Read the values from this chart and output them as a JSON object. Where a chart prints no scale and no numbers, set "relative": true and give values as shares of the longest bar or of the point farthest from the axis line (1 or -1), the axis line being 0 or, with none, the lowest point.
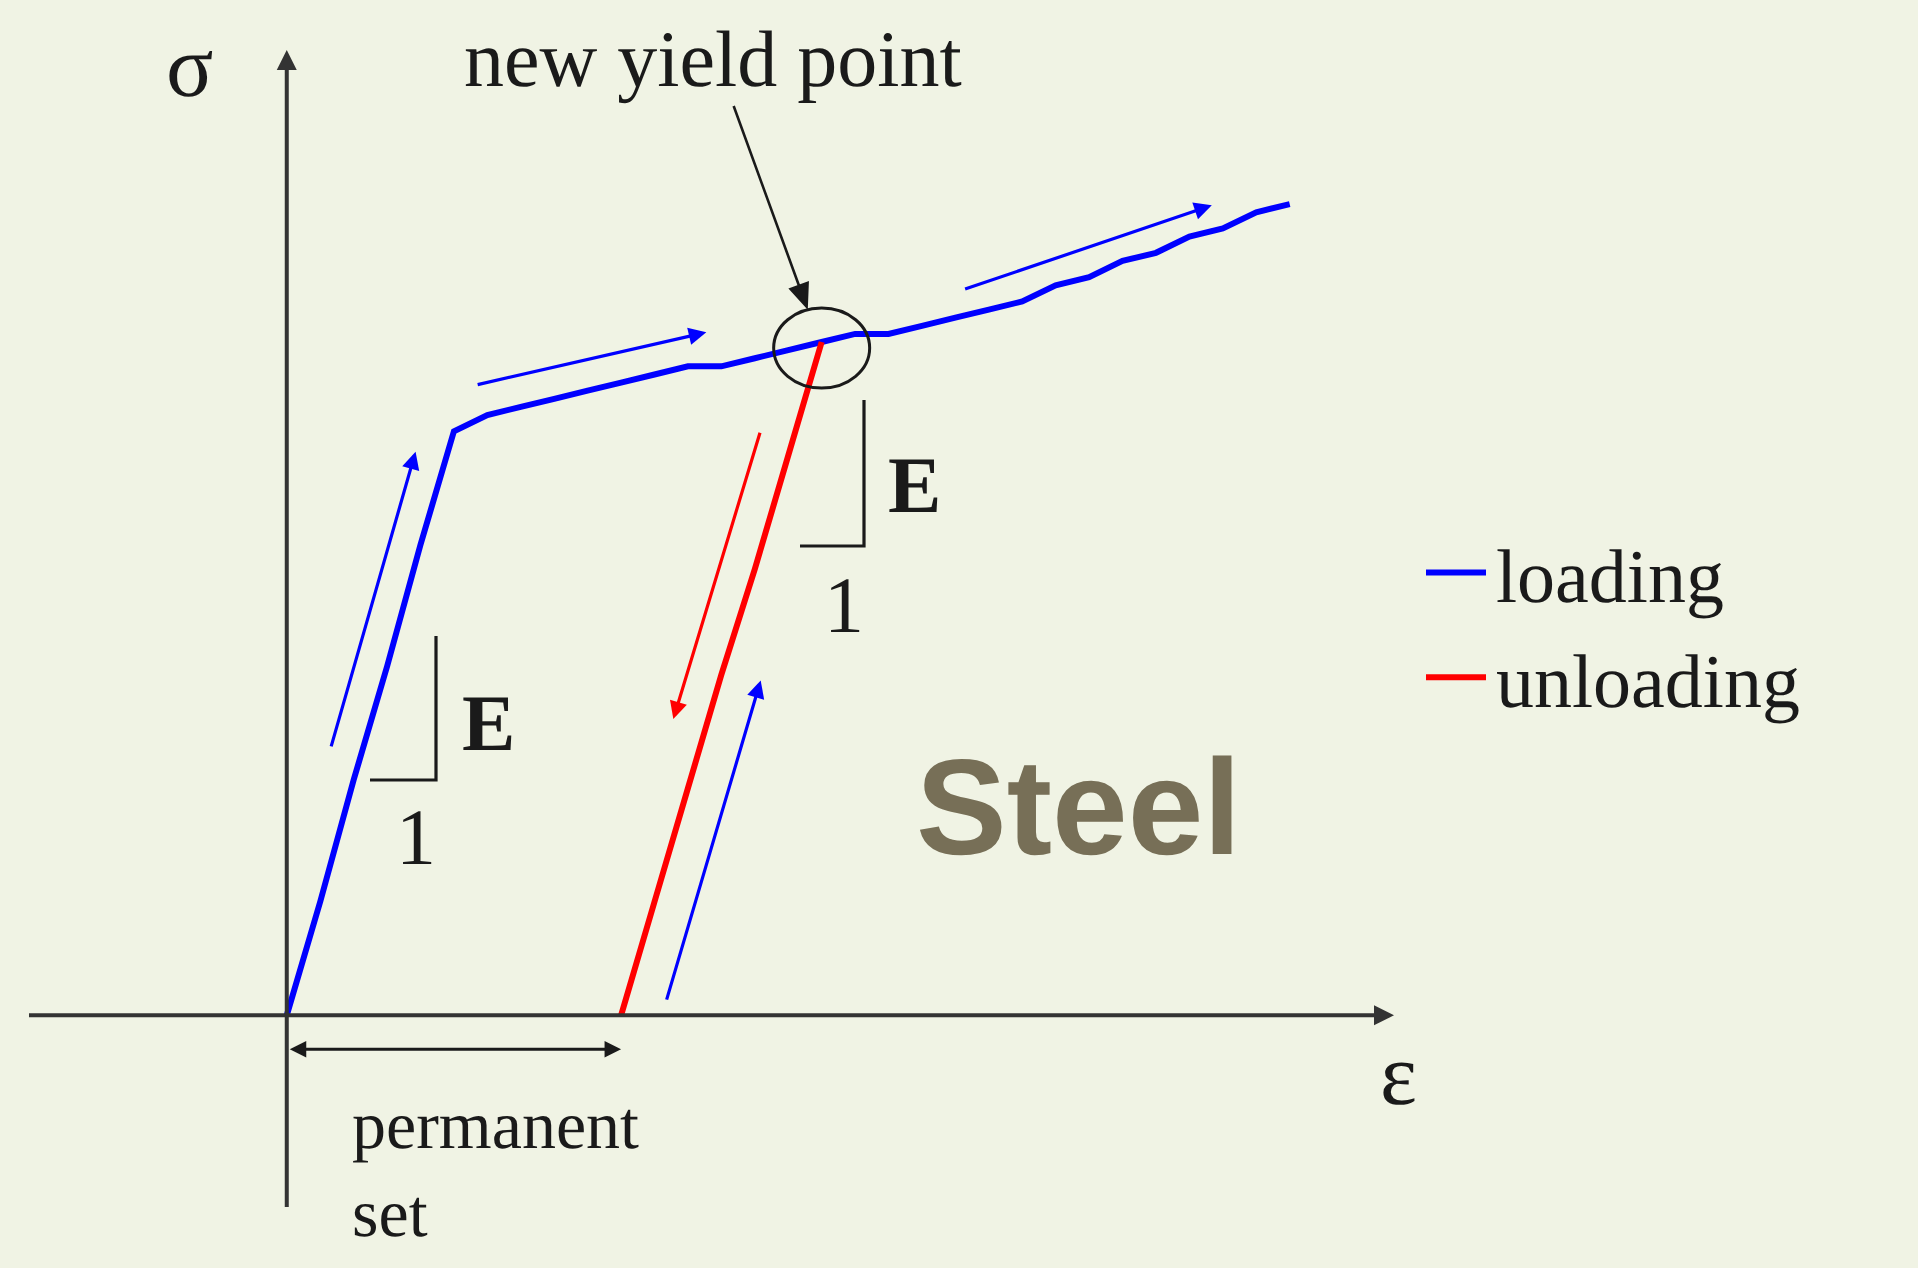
{
  "chart_data": {
    "type": "line",
    "relative": true,
    "xlabel": "ε",
    "ylabel": "σ",
    "line_style": "solid",
    "legend": "right",
    "categories": [
      null,
      null,
      null,
      null,
      null,
      null,
      null,
      null,
      null,
      null,
      null,
      null,
      null,
      null,
      null,
      null,
      null,
      null,
      null,
      null,
      null,
      null,
      null,
      null,
      null,
      null,
      null,
      null,
      null,
      null,
      null
    ],
    "series": [
      {
        "name": "loading",
        "color": "#0000ff",
        "values": [
          0,
          0.14,
          0.29,
          0.43,
          0.58,
          0.72,
          0.74,
          0.75,
          0.76,
          0.77,
          0.78,
          0.79,
          0.8,
          0.8,
          0.81,
          0.82,
          0.83,
          0.84,
          0.84,
          0.85,
          0.86,
          0.87,
          0.88,
          0.9,
          0.91,
          0.93,
          0.94,
          0.96,
          0.97,
          0.99,
          1
        ]
      },
      {
        "name": "unloading",
        "color": "#ff0000",
        "values": [
          null,
          null,
          null,
          null,
          null,
          null,
          null,
          null,
          null,
          null,
          0,
          0.14,
          0.28,
          0.42,
          0.55,
          0.69,
          0.83,
          null,
          null,
          null,
          null,
          null,
          null,
          null,
          null,
          null,
          null,
          null,
          null,
          null,
          null
        ]
      }
    ],
    "annotations": [
      "new yield point",
      "E",
      "1",
      "E",
      "1",
      "permanent set",
      "Steel"
    ]
  }
}
